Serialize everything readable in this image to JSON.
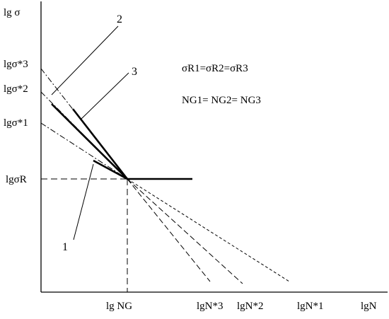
{
  "axes": {
    "y_label": "lg σ",
    "x_label": "lgN"
  },
  "y_ticks": {
    "s3": "lgσ*3",
    "s2": "lgσ*2",
    "s1": "lgσ*1",
    "sR": "lgσR"
  },
  "x_ticks": {
    "nG": "lg NG",
    "n3": "lgN*3",
    "n2": "lgN*2",
    "n1": "lgN*1"
  },
  "curve_labels": {
    "c1": "1",
    "c2": "2",
    "c3": "3"
  },
  "equations": {
    "sigma": "σR1=σR2=σR3",
    "n": "NG1= NG2= NG3"
  }
}
